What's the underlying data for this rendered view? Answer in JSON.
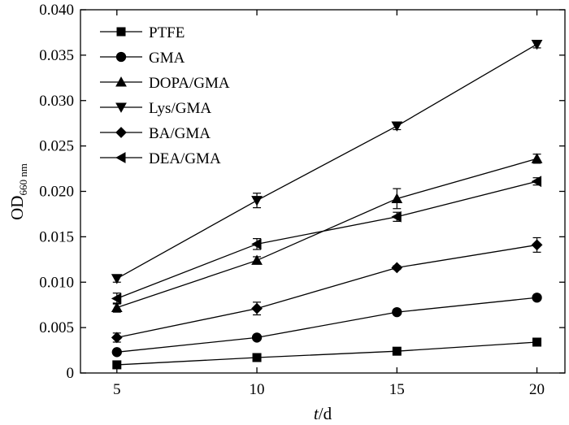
{
  "chart_data": {
    "type": "line",
    "x": [
      5,
      10,
      15,
      20
    ],
    "xlim": [
      3.7,
      21
    ],
    "ylim": [
      0,
      0.04
    ],
    "xticks": [
      5,
      10,
      15,
      20
    ],
    "yticks": [
      "0",
      "0.005",
      "0.010",
      "0.015",
      "0.020",
      "0.025",
      "0.030",
      "0.035",
      "0.040"
    ],
    "xlabel_italic": "t",
    "xlabel_rest": "/d",
    "ylabel_main": "OD",
    "ylabel_sub": "660 nm",
    "legend_position": "top-left",
    "grid": false,
    "series": [
      {
        "name": "PTFE",
        "marker": "square",
        "values": [
          0.0009,
          0.0017,
          0.0024,
          0.0034
        ],
        "errors": [
          0.0002,
          0.0002,
          0.0002,
          0.0002
        ]
      },
      {
        "name": "GMA",
        "marker": "circle",
        "values": [
          0.0023,
          0.0039,
          0.0067,
          0.0083
        ],
        "errors": [
          0.0002,
          0.0002,
          0.0002,
          0.0002
        ]
      },
      {
        "name": "DOPA/GMA",
        "marker": "triangle-up",
        "values": [
          0.0072,
          0.0124,
          0.0192,
          0.0236
        ],
        "errors": [
          0.0005,
          0.0004,
          0.0011,
          0.0005
        ]
      },
      {
        "name": "Lys/GMA",
        "marker": "triangle-down",
        "values": [
          0.0104,
          0.019,
          0.0272,
          0.0362
        ],
        "errors": [
          0.0004,
          0.0008,
          0.0004,
          0.0004
        ]
      },
      {
        "name": "BA/GMA",
        "marker": "diamond",
        "values": [
          0.0039,
          0.0071,
          0.0116,
          0.0141
        ],
        "errors": [
          0.0005,
          0.0007,
          0.0002,
          0.0008
        ]
      },
      {
        "name": "DEA/GMA",
        "marker": "triangle-left",
        "values": [
          0.0082,
          0.0142,
          0.0172,
          0.0211
        ],
        "errors": [
          0.0006,
          0.0006,
          0.0005,
          0.0004
        ]
      }
    ]
  }
}
